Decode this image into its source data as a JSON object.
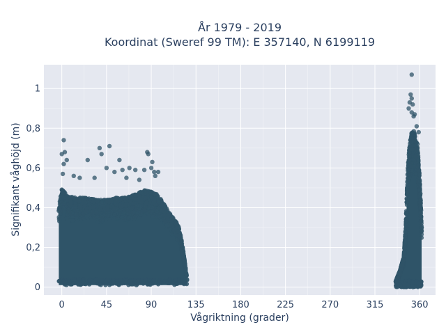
{
  "chart_data": {
    "type": "scatter",
    "title_line1": "År 1979 - 2019",
    "title_line2": "Koordinat (Sweref 99 TM): E 357140, N 6199119",
    "xlabel": "Vågriktning (grader)",
    "ylabel": "Signifikant våghöjd (m)",
    "xlim": [
      -18,
      376
    ],
    "ylim": [
      -0.04,
      1.12
    ],
    "x_ticks": [
      0,
      45,
      90,
      135,
      180,
      225,
      270,
      315,
      360
    ],
    "x_tick_labels": [
      "0",
      "45",
      "90",
      "135",
      "180",
      "225",
      "270",
      "315",
      "360"
    ],
    "y_ticks": [
      0,
      0.2,
      0.4,
      0.6,
      0.8,
      1
    ],
    "y_tick_labels": [
      "0",
      "0,2",
      "0,4",
      "0,6",
      "0,8",
      "1"
    ],
    "grid": true,
    "marker_color": "#2f5468",
    "plot_background": "#e5e8f0",
    "dense_clusters": [
      {
        "x_min": -3,
        "x_max": 126,
        "y_min": 0.01,
        "y_max_profile": [
          [
            -3,
            0.42
          ],
          [
            0,
            0.5
          ],
          [
            5,
            0.46
          ],
          [
            15,
            0.45
          ],
          [
            25,
            0.45
          ],
          [
            35,
            0.44
          ],
          [
            45,
            0.44
          ],
          [
            55,
            0.45
          ],
          [
            65,
            0.45
          ],
          [
            75,
            0.47
          ],
          [
            85,
            0.49
          ],
          [
            95,
            0.47
          ],
          [
            100,
            0.44
          ],
          [
            105,
            0.4
          ],
          [
            110,
            0.36
          ],
          [
            115,
            0.33
          ],
          [
            118,
            0.3
          ],
          [
            121,
            0.22
          ],
          [
            124,
            0.12
          ],
          [
            126,
            0.04
          ]
        ]
      },
      {
        "x_min": 336,
        "x_max": 362,
        "y_min": 0.0,
        "y_max_profile": [
          [
            336,
            0.03
          ],
          [
            340,
            0.08
          ],
          [
            344,
            0.15
          ],
          [
            346,
            0.3
          ],
          [
            348,
            0.6
          ],
          [
            350,
            0.72
          ],
          [
            352,
            0.78
          ],
          [
            354,
            0.79
          ],
          [
            356,
            0.75
          ],
          [
            358,
            0.7
          ],
          [
            359,
            0.62
          ],
          [
            360,
            0.55
          ],
          [
            361,
            0.45
          ],
          [
            362,
            0.3
          ]
        ]
      }
    ],
    "outlier_points": [
      {
        "x": 2,
        "y": 0.74
      },
      {
        "x": 0,
        "y": 0.67
      },
      {
        "x": 3,
        "y": 0.68
      },
      {
        "x": 5,
        "y": 0.64
      },
      {
        "x": 2,
        "y": 0.62
      },
      {
        "x": 1,
        "y": 0.57
      },
      {
        "x": 26,
        "y": 0.64
      },
      {
        "x": 38,
        "y": 0.7
      },
      {
        "x": 40,
        "y": 0.67
      },
      {
        "x": 48,
        "y": 0.71
      },
      {
        "x": 45,
        "y": 0.6
      },
      {
        "x": 58,
        "y": 0.64
      },
      {
        "x": 53,
        "y": 0.58
      },
      {
        "x": 61,
        "y": 0.59
      },
      {
        "x": 68,
        "y": 0.6
      },
      {
        "x": 74,
        "y": 0.59
      },
      {
        "x": 83,
        "y": 0.59
      },
      {
        "x": 86,
        "y": 0.68
      },
      {
        "x": 87,
        "y": 0.67
      },
      {
        "x": 91,
        "y": 0.63
      },
      {
        "x": 90,
        "y": 0.6
      },
      {
        "x": 93,
        "y": 0.58
      },
      {
        "x": 97,
        "y": 0.58
      },
      {
        "x": 94,
        "y": 0.56
      },
      {
        "x": 12,
        "y": 0.56
      },
      {
        "x": 18,
        "y": 0.55
      },
      {
        "x": 33,
        "y": 0.55
      },
      {
        "x": 65,
        "y": 0.55
      },
      {
        "x": 78,
        "y": 0.54
      },
      {
        "x": 352,
        "y": 1.07
      },
      {
        "x": 351,
        "y": 0.97
      },
      {
        "x": 352,
        "y": 0.95
      },
      {
        "x": 350,
        "y": 0.93
      },
      {
        "x": 353,
        "y": 0.92
      },
      {
        "x": 349,
        "y": 0.9
      },
      {
        "x": 352,
        "y": 0.88
      },
      {
        "x": 355,
        "y": 0.87
      },
      {
        "x": 354,
        "y": 0.86
      },
      {
        "x": 357,
        "y": 0.81
      },
      {
        "x": 359,
        "y": 0.78
      },
      {
        "x": 358,
        "y": 0.72
      }
    ]
  }
}
